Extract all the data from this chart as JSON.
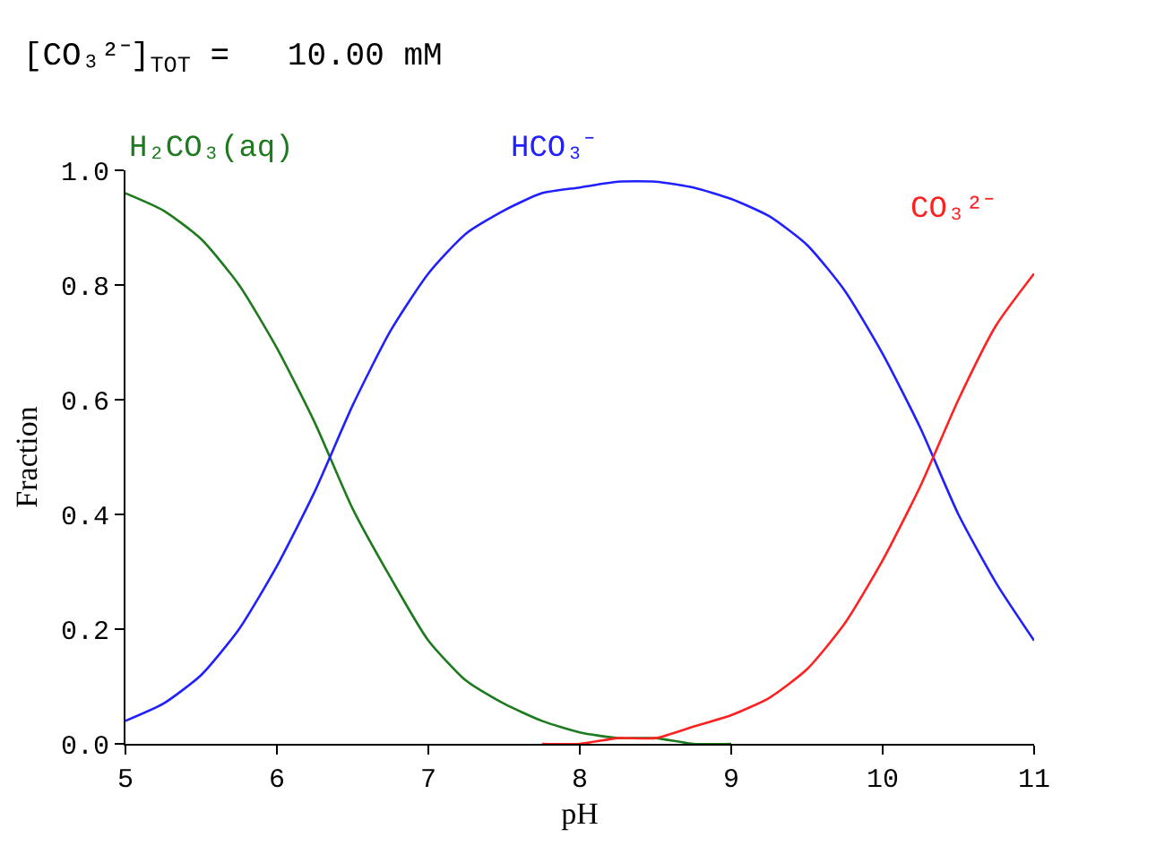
{
  "chart_data": {
    "type": "line",
    "title": "[CO₃²⁻]$_{TOT}$ =   10.00 mM",
    "xlabel": "pH",
    "ylabel": "Fraction",
    "x": [
      5.0,
      5.25,
      5.5,
      5.75,
      6.0,
      6.25,
      6.5,
      6.75,
      7.0,
      7.25,
      7.5,
      7.75,
      8.0,
      8.25,
      8.5,
      8.75,
      9.0,
      9.25,
      9.5,
      9.75,
      10.0,
      10.25,
      10.5,
      10.75,
      11.0
    ],
    "series": [
      {
        "name": "H₂CO₃(aq)",
        "color": "#1e7a1e",
        "values": [
          0.96,
          0.93,
          0.88,
          0.8,
          0.69,
          0.56,
          0.41,
          0.29,
          0.18,
          0.11,
          0.07,
          0.04,
          0.02,
          0.01,
          0.01,
          0.0,
          0.0,
          null,
          null,
          null,
          null,
          null,
          null,
          null,
          null
        ]
      },
      {
        "name": "HCO₃⁻",
        "color": "#2020ff",
        "values": [
          0.04,
          0.07,
          0.12,
          0.2,
          0.31,
          0.44,
          0.59,
          0.72,
          0.82,
          0.89,
          0.93,
          0.96,
          0.97,
          0.98,
          0.98,
          0.97,
          0.95,
          0.92,
          0.87,
          0.79,
          0.68,
          0.55,
          0.4,
          0.28,
          0.18
        ]
      },
      {
        "name": "CO₃²⁻",
        "color": "#ff2020",
        "values": [
          null,
          null,
          null,
          null,
          null,
          null,
          null,
          null,
          null,
          null,
          null,
          0.0,
          0.0,
          0.01,
          0.01,
          0.03,
          0.05,
          0.08,
          0.13,
          0.21,
          0.32,
          0.45,
          0.6,
          0.73,
          0.82
        ]
      }
    ],
    "xlim": [
      5,
      11
    ],
    "xticks": [
      5,
      6,
      7,
      8,
      9,
      10,
      11
    ],
    "ylim": [
      0,
      1
    ],
    "yticks": [
      {
        "value": 0,
        "label": "0.0"
      },
      {
        "value": 0.2,
        "label": "0.2"
      },
      {
        "value": 0.4,
        "label": "0.4"
      },
      {
        "value": 0.6,
        "label": "0.6"
      },
      {
        "value": 0.8,
        "label": "0.8"
      },
      {
        "value": 1,
        "label": "1.0"
      }
    ],
    "legend": false,
    "marker": "none",
    "line_style": "solid"
  }
}
